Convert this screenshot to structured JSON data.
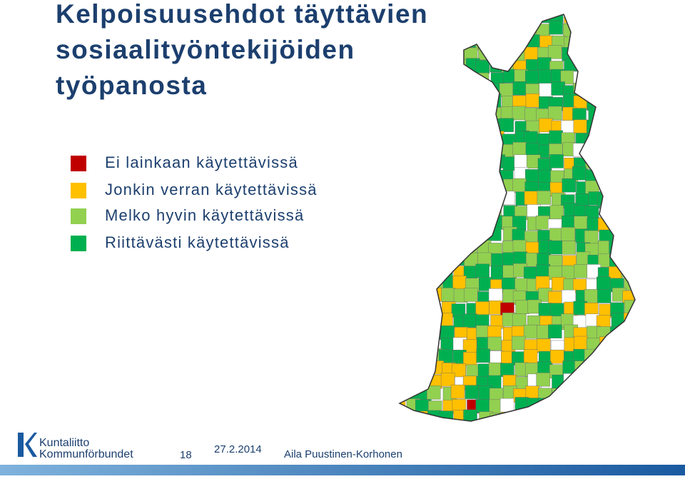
{
  "header": {
    "title_lines": [
      "Kelpoisuusehdot täyttävien",
      "sosiaalityöntekijöiden",
      "työpanosta"
    ]
  },
  "legend": [
    {
      "label": "Ei lainkaan käytettävissä",
      "color": "#c00000"
    },
    {
      "label": "Jonkin verran käytettävissä",
      "color": "#ffc000"
    },
    {
      "label": "Melko hyvin käytettävissä",
      "color": "#92d050"
    },
    {
      "label": "Riittävästi käytettävissä",
      "color": "#00b050"
    }
  ],
  "footer": {
    "logo_lines": [
      "Kuntaliitto",
      "Kommunförbundet"
    ],
    "page": "18",
    "date": "27.2.2014",
    "author": "Aila Puustinen-Korhonen"
  }
}
